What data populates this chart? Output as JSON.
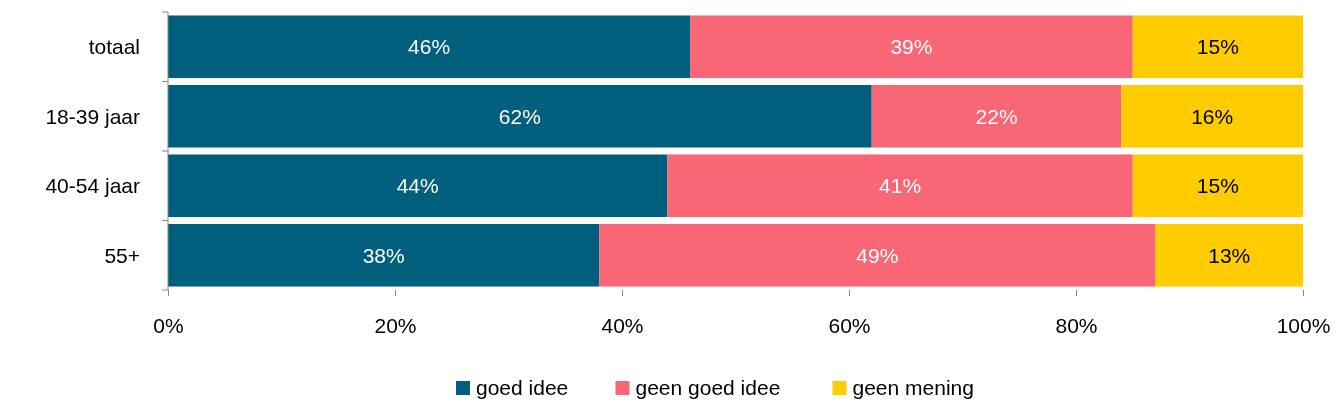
{
  "chart_data": {
    "type": "bar",
    "orientation": "horizontal",
    "stacked": true,
    "categories": [
      "totaal",
      "18-39 jaar",
      "40-54 jaar",
      "55+"
    ],
    "series": [
      {
        "name": "goed idee",
        "color": "#005f7d",
        "values": [
          46,
          62,
          44,
          38
        ]
      },
      {
        "name": "geen goed idee",
        "color": "#f96675",
        "values": [
          39,
          22,
          41,
          49
        ]
      },
      {
        "name": "geen mening",
        "color": "#ffcc00",
        "values": [
          15,
          16,
          15,
          13
        ]
      }
    ],
    "xlim": [
      0,
      100
    ],
    "xticks": [
      {
        "value": 0,
        "label": "0%"
      },
      {
        "value": 20,
        "label": "20%"
      },
      {
        "value": 40,
        "label": "40%"
      },
      {
        "value": 60,
        "label": "60%"
      },
      {
        "value": 80,
        "label": "80%"
      },
      {
        "value": 100,
        "label": "100%"
      }
    ],
    "value_labels": [
      [
        "46%",
        "62%",
        "44%",
        "38%"
      ],
      [
        "39%",
        "22%",
        "41%",
        "49%"
      ],
      [
        "15%",
        "16%",
        "15%",
        "13%"
      ]
    ],
    "legend": "bottom",
    "grid": false
  }
}
